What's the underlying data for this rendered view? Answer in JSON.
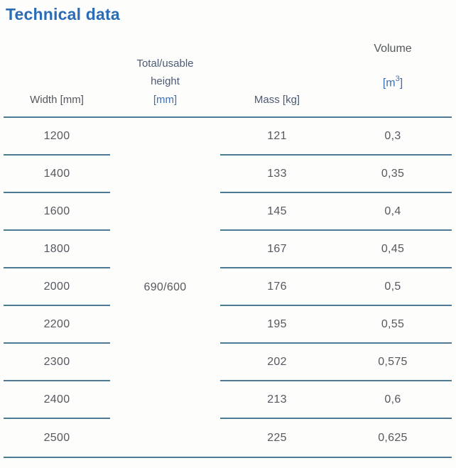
{
  "page": {
    "title": "Technical data"
  },
  "colors": {
    "title_blue": "#2a6cb5",
    "header_unit_blue": "#3c70b0",
    "header_gray": "#54575c",
    "header_blue_gray": "#4d5a72",
    "cell_text": "#55585e",
    "rule_line": "#4d7b96",
    "background": "#fdfdfc"
  },
  "table": {
    "headers": {
      "width": {
        "label": "Width [mm]"
      },
      "height": {
        "line1": "Total/usable",
        "line2": "height",
        "unit": "[mm]"
      },
      "mass": {
        "label": "Mass [kg]"
      },
      "volume": {
        "label": "Volume",
        "unit_open": "[m",
        "unit_sup": "3",
        "unit_close": "]"
      }
    },
    "merged_height_value": "690/600",
    "rows": [
      {
        "width": "1200",
        "mass": "121",
        "volume": "0,3"
      },
      {
        "width": "1400",
        "mass": "133",
        "volume": "0,35"
      },
      {
        "width": "1600",
        "mass": "145",
        "volume": "0,4"
      },
      {
        "width": "1800",
        "mass": "167",
        "volume": "0,45"
      },
      {
        "width": "2000",
        "mass": "176",
        "volume": "0,5"
      },
      {
        "width": "2200",
        "mass": "195",
        "volume": "0,55"
      },
      {
        "width": "2300",
        "mass": "202",
        "volume": "0,575"
      },
      {
        "width": "2400",
        "mass": "213",
        "volume": "0,6"
      },
      {
        "width": "2500",
        "mass": "225",
        "volume": "0,625"
      }
    ]
  }
}
